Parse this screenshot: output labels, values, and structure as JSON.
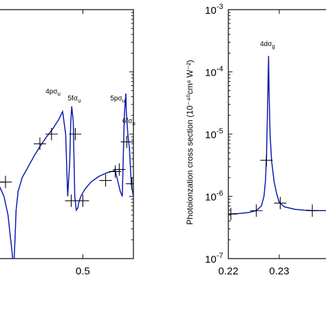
{
  "chart_data": [
    {
      "type": "line",
      "title": "",
      "xlabel": "",
      "ylabel": "",
      "xlim": [
        0.414,
        0.55
      ],
      "y_scale": "log",
      "ylim": [
        1e-07,
        0.001
      ],
      "xticks": [
        0.5
      ],
      "xtick_labels": [
        "0.5"
      ],
      "yticks": [],
      "ytick_labels": [],
      "grid": false,
      "color": "#0a1ab0",
      "series": [
        {
          "x": [
            0.414,
            0.418,
            0.422,
            0.426,
            0.428,
            0.43,
            0.4315,
            0.433,
            0.434,
            0.436,
            0.44,
            0.446,
            0.452,
            0.458,
            0.464,
            0.47,
            0.476,
            0.48,
            0.483,
            0.485,
            0.487,
            0.488,
            0.489,
            0.4905,
            0.492,
            0.4935,
            0.495,
            0.496,
            0.498,
            0.502,
            0.508,
            0.516,
            0.524,
            0.532,
            0.537,
            0.539,
            0.541,
            0.5425,
            0.543,
            0.5445,
            0.546,
            0.548,
            0.55
          ],
          "y": [
            1.7e-06,
            1.4e-06,
            1e-06,
            5e-07,
            2.5e-07,
            1.3e-07,
            6e-08,
            2.2e-07,
            6e-07,
            1.2e-06,
            2e-06,
            3e-06,
            4.5e-06,
            6.5e-06,
            9e-06,
            1.2e-05,
            1.7e-05,
            2.3e-05,
            1e-05,
            1e-06,
            3.5e-06,
            1.5e-05,
            2.8e-05,
            1.6e-05,
            1e-06,
            6e-07,
            6.5e-07,
            8e-07,
            1e-06,
            1.3e-06,
            1.7e-06,
            2.1e-06,
            2.4e-06,
            2.6e-06,
            1.2e-06,
            1e-06,
            2e-05,
            4.5e-05,
            2.2e-05,
            1e-05,
            6e-06,
            1.5e-06,
            1e-06
          ]
        }
      ],
      "markers": {
        "x": [
          0.4165,
          0.4235,
          0.4575,
          0.469,
          0.4885,
          0.4925,
          0.5,
          0.5225,
          0.532,
          0.536,
          0.5435,
          0.5485,
          0.55
        ],
        "y": [
          1.7e-06,
          1.7e-06,
          7e-06,
          1e-05,
          8.5e-07,
          1e-05,
          8.5e-07,
          1.8e-06,
          2.5e-06,
          2.7e-06,
          7.5e-06,
          1.6e-06,
          1.6e-06
        ]
      },
      "annotations": [
        {
          "label": "4pσ",
          "sub": "u",
          "x": 0.4705,
          "y": 4.5e-05
        },
        {
          "label": "5fσ",
          "sub": "u",
          "x": 0.4915,
          "y": 3.5e-05
        },
        {
          "label": "5pσ",
          "sub": "u",
          "x": 0.5345,
          "y": 3.5e-05
        },
        {
          "label": "6fσ",
          "sub": "u",
          "x": 0.5455,
          "y": 1.5e-05
        }
      ]
    },
    {
      "type": "line",
      "title": "",
      "xlabel": "",
      "ylabel": "Photoionzation cross section (10⁻⁴⁰cm⁶ W⁻²)",
      "xlim": [
        0.22,
        0.24
      ],
      "y_scale": "log",
      "ylim": [
        1e-07,
        0.001
      ],
      "xticks": [
        0.22,
        0.23
      ],
      "xtick_labels": [
        "0.22",
        "0.23"
      ],
      "yticks": [
        1e-07,
        1e-06,
        1e-05,
        0.0001,
        0.001
      ],
      "ytick_labels": [
        {
          "base": "10",
          "exp": "-7"
        },
        {
          "base": "10",
          "exp": "-6"
        },
        {
          "base": "10",
          "exp": "-5"
        },
        {
          "base": "10",
          "exp": "-4"
        },
        {
          "base": "10",
          "exp": "-3"
        }
      ],
      "grid": false,
      "color": "#0a1ab0",
      "series": [
        {
          "x": [
            0.22,
            0.222,
            0.224,
            0.2255,
            0.2265,
            0.227,
            0.2273,
            0.2275,
            0.2277,
            0.2279,
            0.228,
            0.2282,
            0.2285,
            0.229,
            0.2295,
            0.23,
            0.231,
            0.233,
            0.235,
            0.237,
            0.239,
            0.24
          ],
          "y": [
            5.2e-07,
            5.3e-07,
            5.5e-07,
            5.9e-07,
            7e-07,
            1e-06,
            1.8e-06,
            4.5e-06,
            2.5e-05,
            0.00018,
            5e-05,
            1e-05,
            3.7e-06,
            1.7e-06,
            1.1e-06,
            8e-07,
            6.8e-07,
            6.2e-07,
            6e-07,
            5.9e-07,
            5.9e-07,
            5.9e-07
          ]
        }
      ],
      "markers": {
        "x": [
          0.2205,
          0.2255,
          0.2275,
          0.2302,
          0.2365
        ],
        "y": [
          5.2e-07,
          5.9e-07,
          3.8e-06,
          7.8e-07,
          5.9e-07
        ]
      },
      "annotations": [
        {
          "label": "4dσ",
          "sub": "g",
          "x": 0.2277,
          "y": 0.00026
        }
      ]
    }
  ]
}
